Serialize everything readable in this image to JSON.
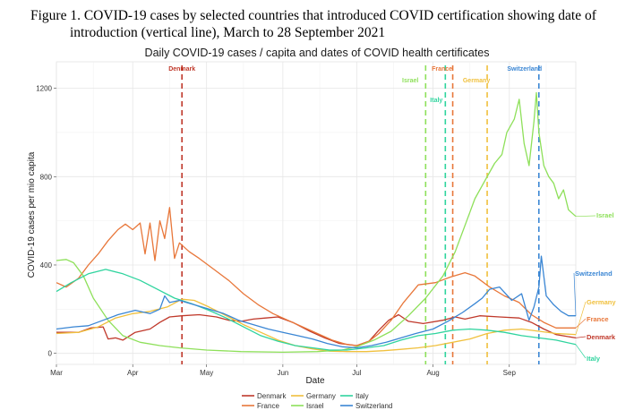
{
  "caption": {
    "line1": "Figure 1. COVID-19 cases by selected countries that introduced COVID certification showing date of",
    "line2": "introduction (vertical line), March to 28 September 2021"
  },
  "chart_data": {
    "type": "line",
    "title": "Daily COVID-19 cases / capita and dates of COVID health certificates",
    "xlabel": "Date",
    "ylabel": "COVID-19 cases per mio capita",
    "x_ticks": [
      "Mar",
      "Apr",
      "May",
      "Jun",
      "Jul",
      "Aug",
      "Sep"
    ],
    "y_ticks": [
      0,
      400,
      800,
      1200
    ],
    "xlim": [
      "2021-03-01",
      "2021-09-28"
    ],
    "ylim": [
      -50,
      1320
    ],
    "grid": true,
    "legend_position": "bottom",
    "series": [
      {
        "name": "Denmark",
        "color": "#c0392b",
        "certificate_date": "2021-04-21",
        "points": [
          [
            "2021-03-01",
            95
          ],
          [
            "2021-03-10",
            95
          ],
          [
            "2021-03-15",
            115
          ],
          [
            "2021-03-20",
            120
          ],
          [
            "2021-03-22",
            65
          ],
          [
            "2021-03-25",
            70
          ],
          [
            "2021-03-28",
            60
          ],
          [
            "2021-04-02",
            95
          ],
          [
            "2021-04-08",
            110
          ],
          [
            "2021-04-12",
            140
          ],
          [
            "2021-04-16",
            165
          ],
          [
            "2021-04-21",
            170
          ],
          [
            "2021-04-28",
            175
          ],
          [
            "2021-05-05",
            165
          ],
          [
            "2021-05-10",
            150
          ],
          [
            "2021-05-15",
            145
          ],
          [
            "2021-05-20",
            155
          ],
          [
            "2021-05-25",
            160
          ],
          [
            "2021-05-30",
            165
          ],
          [
            "2021-06-05",
            140
          ],
          [
            "2021-06-12",
            100
          ],
          [
            "2021-06-18",
            70
          ],
          [
            "2021-06-24",
            45
          ],
          [
            "2021-07-01",
            35
          ],
          [
            "2021-07-06",
            55
          ],
          [
            "2021-07-10",
            105
          ],
          [
            "2021-07-14",
            150
          ],
          [
            "2021-07-18",
            175
          ],
          [
            "2021-07-22",
            145
          ],
          [
            "2021-07-28",
            135
          ],
          [
            "2021-08-05",
            150
          ],
          [
            "2021-08-10",
            165
          ],
          [
            "2021-08-14",
            155
          ],
          [
            "2021-08-20",
            170
          ],
          [
            "2021-08-28",
            165
          ],
          [
            "2021-09-05",
            160
          ],
          [
            "2021-09-10",
            140
          ],
          [
            "2021-09-15",
            110
          ],
          [
            "2021-09-20",
            85
          ],
          [
            "2021-09-28",
            70
          ]
        ]
      },
      {
        "name": "France",
        "color": "#e8773a",
        "certificate_date": "2021-08-09",
        "points": [
          [
            "2021-03-01",
            320
          ],
          [
            "2021-03-05",
            300
          ],
          [
            "2021-03-10",
            340
          ],
          [
            "2021-03-14",
            400
          ],
          [
            "2021-03-18",
            450
          ],
          [
            "2021-03-22",
            510
          ],
          [
            "2021-03-26",
            560
          ],
          [
            "2021-03-29",
            585
          ],
          [
            "2021-04-01",
            560
          ],
          [
            "2021-04-04",
            590
          ],
          [
            "2021-04-06",
            450
          ],
          [
            "2021-04-08",
            590
          ],
          [
            "2021-04-10",
            420
          ],
          [
            "2021-04-12",
            600
          ],
          [
            "2021-04-14",
            520
          ],
          [
            "2021-04-16",
            660
          ],
          [
            "2021-04-18",
            430
          ],
          [
            "2021-04-20",
            500
          ],
          [
            "2021-04-24",
            460
          ],
          [
            "2021-04-28",
            430
          ],
          [
            "2021-05-04",
            380
          ],
          [
            "2021-05-10",
            330
          ],
          [
            "2021-05-16",
            270
          ],
          [
            "2021-05-22",
            220
          ],
          [
            "2021-05-28",
            180
          ],
          [
            "2021-06-03",
            150
          ],
          [
            "2021-06-09",
            120
          ],
          [
            "2021-06-15",
            90
          ],
          [
            "2021-06-21",
            60
          ],
          [
            "2021-06-27",
            40
          ],
          [
            "2021-07-01",
            35
          ],
          [
            "2021-07-06",
            55
          ],
          [
            "2021-07-10",
            90
          ],
          [
            "2021-07-15",
            150
          ],
          [
            "2021-07-20",
            230
          ],
          [
            "2021-07-26",
            310
          ],
          [
            "2021-08-02",
            320
          ],
          [
            "2021-08-08",
            345
          ],
          [
            "2021-08-14",
            365
          ],
          [
            "2021-08-18",
            350
          ],
          [
            "2021-08-24",
            300
          ],
          [
            "2021-08-30",
            260
          ],
          [
            "2021-09-05",
            230
          ],
          [
            "2021-09-10",
            175
          ],
          [
            "2021-09-15",
            140
          ],
          [
            "2021-09-20",
            115
          ],
          [
            "2021-09-28",
            115
          ]
        ]
      },
      {
        "name": "Germany",
        "color": "#f0c03d",
        "certificate_date": "2021-08-23",
        "points": [
          [
            "2021-03-01",
            90
          ],
          [
            "2021-03-10",
            95
          ],
          [
            "2021-03-18",
            120
          ],
          [
            "2021-03-25",
            160
          ],
          [
            "2021-04-01",
            180
          ],
          [
            "2021-04-08",
            190
          ],
          [
            "2021-04-15",
            210
          ],
          [
            "2021-04-21",
            245
          ],
          [
            "2021-04-26",
            240
          ],
          [
            "2021-05-02",
            210
          ],
          [
            "2021-05-09",
            170
          ],
          [
            "2021-05-16",
            130
          ],
          [
            "2021-05-23",
            95
          ],
          [
            "2021-05-30",
            60
          ],
          [
            "2021-06-06",
            35
          ],
          [
            "2021-06-13",
            20
          ],
          [
            "2021-06-20",
            10
          ],
          [
            "2021-06-27",
            8
          ],
          [
            "2021-07-05",
            8
          ],
          [
            "2021-07-12",
            12
          ],
          [
            "2021-07-19",
            18
          ],
          [
            "2021-07-26",
            25
          ],
          [
            "2021-08-02",
            35
          ],
          [
            "2021-08-09",
            50
          ],
          [
            "2021-08-16",
            65
          ],
          [
            "2021-08-23",
            90
          ],
          [
            "2021-08-30",
            105
          ],
          [
            "2021-09-06",
            110
          ],
          [
            "2021-09-13",
            100
          ],
          [
            "2021-09-20",
            90
          ],
          [
            "2021-09-28",
            85
          ]
        ]
      },
      {
        "name": "Israel",
        "color": "#8ee05a",
        "certificate_date": "2021-07-29",
        "points": [
          [
            "2021-03-01",
            420
          ],
          [
            "2021-03-05",
            425
          ],
          [
            "2021-03-08",
            410
          ],
          [
            "2021-03-12",
            350
          ],
          [
            "2021-03-16",
            250
          ],
          [
            "2021-03-22",
            150
          ],
          [
            "2021-03-28",
            80
          ],
          [
            "2021-04-04",
            50
          ],
          [
            "2021-04-12",
            35
          ],
          [
            "2021-04-20",
            25
          ],
          [
            "2021-05-01",
            15
          ],
          [
            "2021-05-15",
            8
          ],
          [
            "2021-06-01",
            5
          ],
          [
            "2021-06-15",
            8
          ],
          [
            "2021-06-25",
            15
          ],
          [
            "2021-07-01",
            30
          ],
          [
            "2021-07-08",
            60
          ],
          [
            "2021-07-15",
            100
          ],
          [
            "2021-07-22",
            170
          ],
          [
            "2021-07-29",
            250
          ],
          [
            "2021-08-05",
            350
          ],
          [
            "2021-08-10",
            460
          ],
          [
            "2021-08-15",
            610
          ],
          [
            "2021-08-18",
            700
          ],
          [
            "2021-08-22",
            780
          ],
          [
            "2021-08-26",
            860
          ],
          [
            "2021-08-29",
            900
          ],
          [
            "2021-08-31",
            1000
          ],
          [
            "2021-09-03",
            1060
          ],
          [
            "2021-09-05",
            1150
          ],
          [
            "2021-09-07",
            950
          ],
          [
            "2021-09-09",
            850
          ],
          [
            "2021-09-11",
            1050
          ],
          [
            "2021-09-12",
            1180
          ],
          [
            "2021-09-13",
            1000
          ],
          [
            "2021-09-15",
            850
          ],
          [
            "2021-09-17",
            800
          ],
          [
            "2021-09-19",
            770
          ],
          [
            "2021-09-21",
            700
          ],
          [
            "2021-09-23",
            740
          ],
          [
            "2021-09-25",
            650
          ],
          [
            "2021-09-28",
            620
          ]
        ]
      },
      {
        "name": "Italy",
        "color": "#2fd49e",
        "certificate_date": "2021-08-06",
        "points": [
          [
            "2021-03-01",
            280
          ],
          [
            "2021-03-07",
            320
          ],
          [
            "2021-03-14",
            360
          ],
          [
            "2021-03-21",
            380
          ],
          [
            "2021-03-28",
            360
          ],
          [
            "2021-04-04",
            330
          ],
          [
            "2021-04-11",
            290
          ],
          [
            "2021-04-18",
            250
          ],
          [
            "2021-04-25",
            225
          ],
          [
            "2021-05-02",
            195
          ],
          [
            "2021-05-09",
            160
          ],
          [
            "2021-05-16",
            120
          ],
          [
            "2021-05-23",
            80
          ],
          [
            "2021-05-30",
            55
          ],
          [
            "2021-06-06",
            35
          ],
          [
            "2021-06-13",
            25
          ],
          [
            "2021-06-20",
            15
          ],
          [
            "2021-06-27",
            15
          ],
          [
            "2021-07-05",
            25
          ],
          [
            "2021-07-12",
            35
          ],
          [
            "2021-07-19",
            60
          ],
          [
            "2021-07-26",
            80
          ],
          [
            "2021-08-02",
            90
          ],
          [
            "2021-08-09",
            105
          ],
          [
            "2021-08-16",
            110
          ],
          [
            "2021-08-23",
            105
          ],
          [
            "2021-08-30",
            95
          ],
          [
            "2021-09-06",
            80
          ],
          [
            "2021-09-13",
            70
          ],
          [
            "2021-09-20",
            60
          ],
          [
            "2021-09-28",
            40
          ]
        ]
      },
      {
        "name": "Switzerland",
        "color": "#3a86d4",
        "certificate_date": "2021-09-13",
        "points": [
          [
            "2021-03-01",
            110
          ],
          [
            "2021-03-08",
            120
          ],
          [
            "2021-03-14",
            125
          ],
          [
            "2021-03-20",
            150
          ],
          [
            "2021-03-26",
            175
          ],
          [
            "2021-04-02",
            195
          ],
          [
            "2021-04-08",
            180
          ],
          [
            "2021-04-12",
            200
          ],
          [
            "2021-04-14",
            260
          ],
          [
            "2021-04-16",
            230
          ],
          [
            "2021-04-20",
            240
          ],
          [
            "2021-04-26",
            220
          ],
          [
            "2021-05-02",
            200
          ],
          [
            "2021-05-08",
            180
          ],
          [
            "2021-05-14",
            150
          ],
          [
            "2021-05-20",
            130
          ],
          [
            "2021-05-26",
            110
          ],
          [
            "2021-06-01",
            95
          ],
          [
            "2021-06-07",
            80
          ],
          [
            "2021-06-13",
            65
          ],
          [
            "2021-06-19",
            45
          ],
          [
            "2021-06-25",
            30
          ],
          [
            "2021-07-01",
            25
          ],
          [
            "2021-07-07",
            35
          ],
          [
            "2021-07-13",
            50
          ],
          [
            "2021-07-19",
            70
          ],
          [
            "2021-07-25",
            90
          ],
          [
            "2021-08-01",
            110
          ],
          [
            "2021-08-07",
            145
          ],
          [
            "2021-08-13",
            185
          ],
          [
            "2021-08-18",
            225
          ],
          [
            "2021-08-21",
            250
          ],
          [
            "2021-08-24",
            290
          ],
          [
            "2021-08-28",
            300
          ],
          [
            "2021-09-02",
            240
          ],
          [
            "2021-09-06",
            270
          ],
          [
            "2021-09-09",
            150
          ],
          [
            "2021-09-11",
            210
          ],
          [
            "2021-09-13",
            300
          ],
          [
            "2021-09-14",
            440
          ],
          [
            "2021-09-16",
            260
          ],
          [
            "2021-09-19",
            220
          ],
          [
            "2021-09-22",
            190
          ],
          [
            "2021-09-25",
            170
          ],
          [
            "2021-09-28",
            170
          ]
        ]
      }
    ],
    "cert_labels": [
      {
        "name": "Denmark",
        "color": "#c0392b"
      },
      {
        "name": "France",
        "color": "#e8773a"
      },
      {
        "name": "Israel",
        "color": "#8ee05a"
      },
      {
        "name": "Germany",
        "color": "#f0c03d"
      },
      {
        "name": "Italy",
        "color": "#2fd49e"
      },
      {
        "name": "Switzerland",
        "color": "#3a86d4"
      }
    ],
    "end_labels": [
      {
        "name": "Israel",
        "color": "#8ee05a"
      },
      {
        "name": "Switzerland",
        "color": "#3a86d4"
      },
      {
        "name": "Germany",
        "color": "#f0c03d"
      },
      {
        "name": "France",
        "color": "#e8773a"
      },
      {
        "name": "Denmark",
        "color": "#c0392b"
      },
      {
        "name": "Italy",
        "color": "#2fd49e"
      }
    ],
    "legend": [
      {
        "name": "Denmark",
        "color": "#c0392b"
      },
      {
        "name": "France",
        "color": "#e8773a"
      },
      {
        "name": "Germany",
        "color": "#f0c03d"
      },
      {
        "name": "Israel",
        "color": "#8ee05a"
      },
      {
        "name": "Italy",
        "color": "#2fd49e"
      },
      {
        "name": "Switzerland",
        "color": "#3a86d4"
      }
    ]
  }
}
